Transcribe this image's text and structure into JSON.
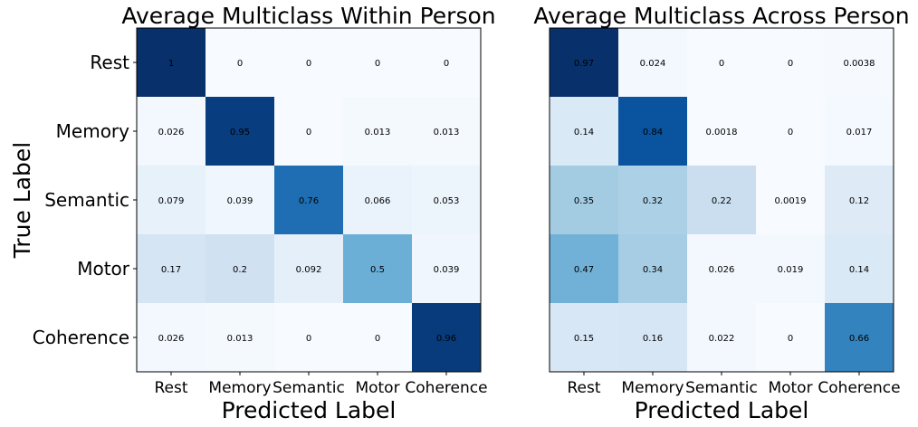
{
  "chart_data": [
    {
      "type": "heatmap",
      "title": "Average Multiclass Within Person",
      "xlabel": "Predicted Label",
      "ylabel": "True Label",
      "x_categories": [
        "Rest",
        "Memory",
        "Semantic",
        "Motor",
        "Coherence"
      ],
      "y_categories": [
        "Rest",
        "Memory",
        "Semantic",
        "Motor",
        "Coherence"
      ],
      "show_y_ticks": true,
      "colormap": "Blues",
      "value_range": [
        0,
        1
      ],
      "values": [
        [
          1,
          0,
          0,
          0,
          0
        ],
        [
          0.026,
          0.95,
          0,
          0.013,
          0.013
        ],
        [
          0.079,
          0.039,
          0.76,
          0.066,
          0.053
        ],
        [
          0.17,
          0.2,
          0.092,
          0.5,
          0.039
        ],
        [
          0.026,
          0.013,
          0,
          0,
          0.96
        ]
      ],
      "labels": [
        [
          "1",
          "0",
          "0",
          "0",
          "0"
        ],
        [
          "0.026",
          "0.95",
          "0",
          "0.013",
          "0.013"
        ],
        [
          "0.079",
          "0.039",
          "0.76",
          "0.066",
          "0.053"
        ],
        [
          "0.17",
          "0.2",
          "0.092",
          "0.5",
          "0.039"
        ],
        [
          "0.026",
          "0.013",
          "0",
          "0",
          "0.96"
        ]
      ]
    },
    {
      "type": "heatmap",
      "title": "Average Multiclass Across Person",
      "xlabel": "Predicted Label",
      "ylabel": "",
      "x_categories": [
        "Rest",
        "Memory",
        "Semantic",
        "Motor",
        "Coherence"
      ],
      "y_categories": [
        "Rest",
        "Memory",
        "Semantic",
        "Motor",
        "Coherence"
      ],
      "show_y_ticks": false,
      "colormap": "Blues",
      "value_range": [
        0,
        0.97
      ],
      "values": [
        [
          0.97,
          0.024,
          0,
          0,
          0.0038
        ],
        [
          0.14,
          0.84,
          0.0018,
          0,
          0.017
        ],
        [
          0.35,
          0.32,
          0.22,
          0.0019,
          0.12
        ],
        [
          0.47,
          0.34,
          0.026,
          0.019,
          0.14
        ],
        [
          0.15,
          0.16,
          0.022,
          0,
          0.66
        ]
      ],
      "labels": [
        [
          "0.97",
          "0.024",
          "0",
          "0",
          "0.0038"
        ],
        [
          "0.14",
          "0.84",
          "0.0018",
          "0",
          "0.017"
        ],
        [
          "0.35",
          "0.32",
          "0.22",
          "0.0019",
          "0.12"
        ],
        [
          "0.47",
          "0.34",
          "0.026",
          "0.019",
          "0.14"
        ],
        [
          "0.15",
          "0.16",
          "0.022",
          "0",
          "0.66"
        ]
      ]
    }
  ]
}
